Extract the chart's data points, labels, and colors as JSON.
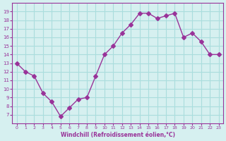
{
  "x": [
    0,
    1,
    2,
    3,
    4,
    5,
    6,
    7,
    8,
    9,
    10,
    11,
    12,
    13,
    14,
    15,
    16,
    17,
    18,
    19,
    20,
    21,
    22,
    23
  ],
  "y": [
    13,
    12,
    11.5,
    9.5,
    8.5,
    6.8,
    7.8,
    8.8,
    9,
    11.5,
    14,
    15,
    16.5,
    17.5,
    18.8,
    18.8,
    18.2,
    18.5,
    18.8,
    16,
    16.5,
    15.5,
    14,
    14
  ],
  "line_color": "#993399",
  "marker": "D",
  "marker_size": 3,
  "bg_color": "#d6f0f0",
  "grid_color": "#aadddd",
  "xlabel": "Windchill (Refroidissement éolien,°C)",
  "xlabel_color": "#993399",
  "tick_color": "#993399",
  "ylim": [
    6,
    20
  ],
  "xlim": [
    -0.5,
    23.5
  ],
  "yticks": [
    7,
    8,
    9,
    10,
    11,
    12,
    13,
    14,
    15,
    16,
    17,
    18,
    19
  ],
  "xticks": [
    0,
    1,
    2,
    3,
    4,
    5,
    6,
    7,
    8,
    9,
    10,
    11,
    12,
    13,
    14,
    15,
    16,
    17,
    18,
    19,
    20,
    21,
    22,
    23
  ]
}
